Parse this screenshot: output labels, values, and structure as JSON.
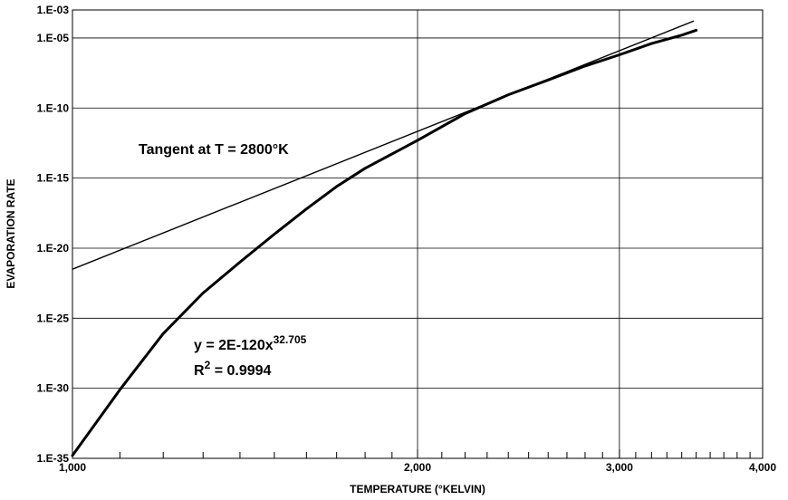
{
  "chart_data": {
    "type": "line",
    "xlabel": "TEMPERATURE (°KELVIN)",
    "ylabel": "EVAPORATION RATE",
    "x_scale": "log",
    "y_scale": "log",
    "xlim": [
      1000,
      4000
    ],
    "ylim_exponent": [
      -35,
      -3
    ],
    "grid": true,
    "x_ticks": [
      {
        "value": 1000,
        "label": "1,000"
      },
      {
        "value": 2000,
        "label": "2,000"
      },
      {
        "value": 3000,
        "label": "3,000"
      },
      {
        "value": 4000,
        "label": "4,000"
      }
    ],
    "y_ticks": [
      {
        "exp": -3,
        "label": "1.E-03"
      },
      {
        "exp": -5,
        "label": "1.E-05"
      },
      {
        "exp": -10,
        "label": "1.E-10"
      },
      {
        "exp": -15,
        "label": "1.E-15"
      },
      {
        "exp": -20,
        "label": "1.E-20"
      },
      {
        "exp": -25,
        "label": "1.E-25"
      },
      {
        "exp": -30,
        "label": "1.E-30"
      },
      {
        "exp": -35,
        "label": "1.E-35"
      }
    ],
    "series": [
      {
        "style": "thick",
        "points": [
          {
            "x": 1000,
            "log10y": -34.8
          },
          {
            "x": 1100,
            "log10y": -30.1
          },
          {
            "x": 1200,
            "log10y": -26.1
          },
          {
            "x": 1300,
            "log10y": -23.2
          },
          {
            "x": 1400,
            "log10y": -21.0
          },
          {
            "x": 1500,
            "log10y": -19.0
          },
          {
            "x": 1600,
            "log10y": -17.2
          },
          {
            "x": 1700,
            "log10y": -15.6
          },
          {
            "x": 1800,
            "log10y": -14.3
          },
          {
            "x": 2000,
            "log10y": -12.3
          },
          {
            "x": 2200,
            "log10y": -10.4
          },
          {
            "x": 2400,
            "log10y": -9.05
          },
          {
            "x": 2600,
            "log10y": -8.0
          },
          {
            "x": 2800,
            "log10y": -7.0
          },
          {
            "x": 3000,
            "log10y": -6.2
          },
          {
            "x": 3200,
            "log10y": -5.4
          },
          {
            "x": 3400,
            "log10y": -4.8
          },
          {
            "x": 3500,
            "log10y": -4.45
          }
        ]
      },
      {
        "name": "Tangent at T = 2800°K",
        "style": "thin",
        "points": [
          {
            "x": 1000,
            "log10y": -21.5
          },
          {
            "x": 3480,
            "log10y": -3.8
          }
        ]
      }
    ],
    "annotations": {
      "tangent_label": "Tangent at T = 2800°K",
      "equation_prefix": "y = 2E-120x",
      "equation_exponent": "32.705",
      "r2_prefix": "R",
      "r2_superscript": "2",
      "r2_suffix": " = 0.9994"
    }
  }
}
